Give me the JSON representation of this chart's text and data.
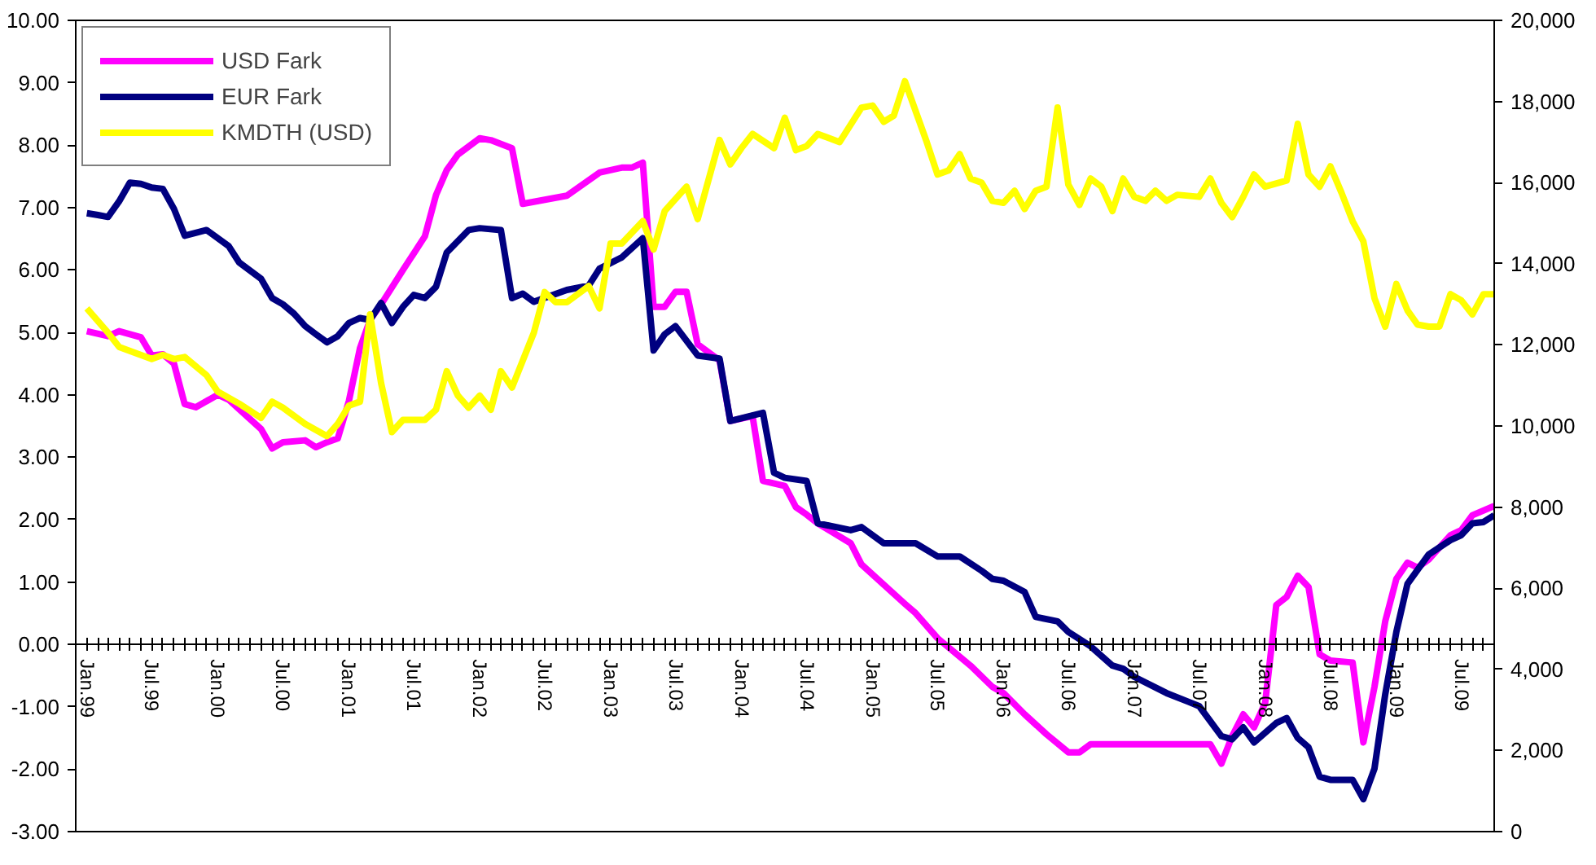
{
  "chart_data": {
    "type": "line",
    "xlim": [
      "1998-12",
      "2009-10"
    ],
    "xticks": [
      {
        "value": "1999-01",
        "label": "Jan.99"
      },
      {
        "value": "1999-07",
        "label": "Jul.99"
      },
      {
        "value": "2000-01",
        "label": "Jan.00"
      },
      {
        "value": "2000-07",
        "label": "Jul.00"
      },
      {
        "value": "2001-01",
        "label": "Jan.01"
      },
      {
        "value": "2001-07",
        "label": "Jul.01"
      },
      {
        "value": "2002-01",
        "label": "Jan.02"
      },
      {
        "value": "2002-07",
        "label": "Jul.02"
      },
      {
        "value": "2003-01",
        "label": "Jan.03"
      },
      {
        "value": "2003-07",
        "label": "Jul.03"
      },
      {
        "value": "2004-01",
        "label": "Jan.04"
      },
      {
        "value": "2004-07",
        "label": "Jul.04"
      },
      {
        "value": "2005-01",
        "label": "Jan.05"
      },
      {
        "value": "2005-07",
        "label": "Jul.05"
      },
      {
        "value": "2006-01",
        "label": "Jan.06"
      },
      {
        "value": "2006-07",
        "label": "Jul.06"
      },
      {
        "value": "2007-01",
        "label": "Jan.07"
      },
      {
        "value": "2007-07",
        "label": "Jul.07"
      },
      {
        "value": "2008-01",
        "label": "Jan.08"
      },
      {
        "value": "2008-07",
        "label": "Jul.08"
      },
      {
        "value": "2009-01",
        "label": "Jan.09"
      },
      {
        "value": "2009-07",
        "label": "Jul.09"
      }
    ],
    "ylim": [
      -3,
      10
    ],
    "yticks": [
      {
        "value": -3,
        "label": "-3.00"
      },
      {
        "value": -2,
        "label": "-2.00"
      },
      {
        "value": -1,
        "label": "-1.00"
      },
      {
        "value": 0,
        "label": "0.00"
      },
      {
        "value": 1,
        "label": "1.00"
      },
      {
        "value": 2,
        "label": "2.00"
      },
      {
        "value": 3,
        "label": "3.00"
      },
      {
        "value": 4,
        "label": "4.00"
      },
      {
        "value": 5,
        "label": "5.00"
      },
      {
        "value": 6,
        "label": "6.00"
      },
      {
        "value": 7,
        "label": "7.00"
      },
      {
        "value": 8,
        "label": "8.00"
      },
      {
        "value": 9,
        "label": "9.00"
      },
      {
        "value": 10,
        "label": "10.00"
      }
    ],
    "y2lim": [
      0,
      20000
    ],
    "y2ticks": [
      0,
      {
        "value": 2000,
        "label": "2,000"
      },
      {
        "value": 4000,
        "label": "4,000"
      },
      {
        "value": 6000,
        "label": "6,000"
      },
      {
        "value": 8000,
        "label": "8,000"
      },
      {
        "value": 10000,
        "label": "10,000"
      },
      {
        "value": 12000,
        "label": "12,000"
      },
      {
        "value": 14000,
        "label": "14,000"
      },
      {
        "value": 16000,
        "label": "16,000"
      },
      {
        "value": 18000,
        "label": "18,000"
      },
      {
        "value": 20000,
        "label": "20,000"
      }
    ],
    "grid": false,
    "legend": "top left",
    "marker": "none",
    "line_style": "solid",
    "series": [
      {
        "name": "USD Fark",
        "color": "#ff00ff",
        "x": [
          "1999-01",
          "1999-03",
          "1999-04",
          "1999-06",
          "1999-07",
          "1999-08",
          "1999-09",
          "1999-10",
          "1999-11",
          "2000-01",
          "2000-02",
          "2000-05",
          "2000-06",
          "2000-07",
          "2000-09",
          "2000-10",
          "2000-11",
          "2000-12",
          "2001-01",
          "2001-02",
          "2001-03",
          "2001-04",
          "2001-06",
          "2001-08",
          "2001-09",
          "2001-10",
          "2001-11",
          "2002-01",
          "2002-02",
          "2002-04",
          "2002-05",
          "2002-09",
          "2002-12",
          "2003-02",
          "2003-03",
          "2003-04",
          "2003-05",
          "2003-06",
          "2003-07",
          "2003-08",
          "2003-09",
          "2003-11",
          "2003-12",
          "2004-02",
          "2004-03",
          "2004-05",
          "2004-06",
          "2004-07",
          "2004-08",
          "2004-11",
          "2004-12",
          "2005-04",
          "2005-05",
          "2005-07",
          "2005-10",
          "2005-12",
          "2006-01",
          "2006-03",
          "2006-05",
          "2006-07",
          "2006-08",
          "2006-09",
          "2007-08",
          "2007-09",
          "2007-10",
          "2007-11",
          "2007-12",
          "2008-01",
          "2008-02",
          "2008-03",
          "2008-04",
          "2008-05",
          "2008-06",
          "2008-07",
          "2008-09",
          "2008-10",
          "2008-11",
          "2008-12",
          "2009-01",
          "2009-02",
          "2009-03",
          "2009-04",
          "2009-06",
          "2009-07",
          "2009-08",
          "2009-10"
        ],
        "values": [
          5.02,
          4.94,
          5.02,
          4.92,
          4.63,
          4.65,
          4.5,
          3.85,
          3.8,
          4.0,
          3.92,
          3.45,
          3.14,
          3.24,
          3.27,
          3.16,
          3.24,
          3.3,
          3.9,
          4.75,
          5.2,
          5.45,
          6.0,
          6.54,
          7.2,
          7.6,
          7.85,
          8.11,
          8.08,
          7.95,
          7.06,
          7.19,
          7.56,
          7.64,
          7.64,
          7.72,
          5.41,
          5.41,
          5.65,
          5.65,
          4.81,
          4.55,
          3.58,
          3.66,
          2.62,
          2.54,
          2.2,
          2.08,
          1.94,
          1.62,
          1.28,
          0.65,
          0.5,
          0.1,
          -0.34,
          -0.68,
          -0.78,
          -1.12,
          -1.44,
          -1.73,
          -1.73,
          -1.6,
          -1.6,
          -1.91,
          -1.47,
          -1.12,
          -1.33,
          -0.94,
          0.63,
          0.76,
          1.1,
          0.92,
          -0.16,
          -0.26,
          -0.29,
          -1.57,
          -0.68,
          0.37,
          1.05,
          1.31,
          1.23,
          1.36,
          1.75,
          1.83,
          2.07,
          2.22
        ]
      },
      {
        "name": "EUR Fark",
        "color": "#000080",
        "x": [
          "1999-01",
          "1999-02",
          "1999-03",
          "1999-04",
          "1999-05",
          "1999-06",
          "1999-07",
          "1999-08",
          "1999-09",
          "1999-10",
          "1999-12",
          "2000-02",
          "2000-03",
          "2000-05",
          "2000-06",
          "2000-07",
          "2000-08",
          "2000-09",
          "2000-10",
          "2000-11",
          "2000-12",
          "2001-01",
          "2001-02",
          "2001-03",
          "2001-04",
          "2001-05",
          "2001-06",
          "2001-07",
          "2001-08",
          "2001-09",
          "2001-10",
          "2001-12",
          "2002-01",
          "2002-03",
          "2002-04",
          "2002-05",
          "2002-06",
          "2002-09",
          "2002-11",
          "2002-12",
          "2003-02",
          "2003-04",
          "2003-05",
          "2003-06",
          "2003-07",
          "2003-09",
          "2003-11",
          "2003-12",
          "2004-03",
          "2004-04",
          "2004-05",
          "2004-07",
          "2004-08",
          "2004-11",
          "2004-12",
          "2005-02",
          "2005-05",
          "2005-07",
          "2005-09",
          "2005-11",
          "2005-12",
          "2006-01",
          "2006-03",
          "2006-04",
          "2006-06",
          "2006-07",
          "2006-09",
          "2006-11",
          "2006-12",
          "2007-01",
          "2007-04",
          "2007-06",
          "2007-07",
          "2007-09",
          "2007-10",
          "2007-11",
          "2007-12",
          "2008-02",
          "2008-03",
          "2008-04",
          "2008-05",
          "2008-06",
          "2008-07",
          "2008-09",
          "2008-10",
          "2008-11",
          "2008-12",
          "2009-01",
          "2009-02",
          "2009-04",
          "2009-06",
          "2009-07",
          "2009-08",
          "2009-09",
          "2009-10"
        ],
        "values": [
          6.91,
          6.88,
          6.85,
          7.1,
          7.4,
          7.38,
          7.32,
          7.3,
          6.98,
          6.55,
          6.64,
          6.38,
          6.12,
          5.86,
          5.55,
          5.45,
          5.3,
          5.1,
          4.97,
          4.84,
          4.94,
          5.15,
          5.23,
          5.2,
          5.47,
          5.15,
          5.41,
          5.6,
          5.55,
          5.73,
          6.28,
          6.64,
          6.67,
          6.64,
          5.55,
          5.62,
          5.49,
          5.68,
          5.75,
          6.02,
          6.2,
          6.51,
          4.71,
          4.97,
          5.1,
          4.63,
          4.58,
          3.58,
          3.71,
          2.75,
          2.67,
          2.62,
          1.94,
          1.83,
          1.88,
          1.62,
          1.62,
          1.41,
          1.41,
          1.18,
          1.05,
          1.02,
          0.84,
          0.44,
          0.37,
          0.2,
          -0.03,
          -0.34,
          -0.39,
          -0.52,
          -0.78,
          -0.92,
          -0.99,
          -1.47,
          -1.52,
          -1.33,
          -1.57,
          -1.26,
          -1.18,
          -1.5,
          -1.65,
          -2.12,
          -2.17,
          -2.17,
          -2.48,
          -1.99,
          -0.8,
          0.2,
          0.97,
          1.44,
          1.67,
          1.75,
          1.94,
          1.96,
          2.07
        ]
      },
      {
        "name": "KMDTH (USD)",
        "color": "#ffff00",
        "axis": "y2",
        "x": [
          "1999-01",
          "1999-03",
          "1999-04",
          "1999-07",
          "1999-08",
          "1999-09",
          "1999-10",
          "1999-12",
          "2000-01",
          "2000-03",
          "2000-05",
          "2000-06",
          "2000-07",
          "2000-09",
          "2000-11",
          "2000-12",
          "2001-01",
          "2001-02",
          "2001-03",
          "2001-04",
          "2001-05",
          "2001-06",
          "2001-08",
          "2001-09",
          "2001-10",
          "2001-11",
          "2001-12",
          "2002-01",
          "2002-02",
          "2002-03",
          "2002-04",
          "2002-06",
          "2002-07",
          "2002-08",
          "2002-09",
          "2002-11",
          "2002-12",
          "2003-01",
          "2003-02",
          "2003-04",
          "2003-05",
          "2003-06",
          "2003-08",
          "2003-09",
          "2003-11",
          "2003-12",
          "2004-01",
          "2004-02",
          "2004-04",
          "2004-05",
          "2004-06",
          "2004-07",
          "2004-08",
          "2004-10",
          "2004-12",
          "2005-01",
          "2005-02",
          "2005-03",
          "2005-04",
          "2005-06",
          "2005-07",
          "2005-08",
          "2005-09",
          "2005-10",
          "2005-11",
          "2005-12",
          "2006-01",
          "2006-02",
          "2006-03",
          "2006-04",
          "2006-05",
          "2006-06",
          "2006-07",
          "2006-08",
          "2006-09",
          "2006-10",
          "2006-11",
          "2006-12",
          "2007-01",
          "2007-02",
          "2007-03",
          "2007-04",
          "2007-05",
          "2007-07",
          "2007-08",
          "2007-09",
          "2007-10",
          "2007-11",
          "2007-12",
          "2008-01",
          "2008-03",
          "2008-04",
          "2008-05",
          "2008-06",
          "2008-07",
          "2008-08",
          "2008-09",
          "2008-10",
          "2008-11",
          "2008-12",
          "2009-01",
          "2009-02",
          "2009-03",
          "2009-04",
          "2009-05",
          "2009-06",
          "2009-07",
          "2009-08",
          "2009-09",
          "2009-10"
        ],
        "values": [
          12900,
          12300,
          11950,
          11650,
          11750,
          11650,
          11700,
          11250,
          10850,
          10550,
          10200,
          10600,
          10450,
          10050,
          9750,
          10050,
          10500,
          10600,
          12750,
          11050,
          9850,
          10150,
          10150,
          10400,
          11350,
          10750,
          10450,
          10750,
          10400,
          11350,
          10950,
          12300,
          13300,
          13050,
          13050,
          13450,
          12900,
          14500,
          14500,
          15050,
          14350,
          15300,
          15900,
          15100,
          17050,
          16450,
          16850,
          17200,
          16850,
          17600,
          16800,
          16900,
          17200,
          17000,
          17850,
          17900,
          17500,
          17650,
          18500,
          17000,
          16200,
          16300,
          16700,
          16100,
          16000,
          15550,
          15500,
          15800,
          15350,
          15800,
          15900,
          17850,
          15950,
          15450,
          16100,
          15900,
          15300,
          16100,
          15650,
          15550,
          15800,
          15550,
          15700,
          15650,
          16100,
          15500,
          15150,
          15650,
          16200,
          15900,
          16050,
          17450,
          16200,
          15900,
          16400,
          15750,
          15050,
          14550,
          13150,
          12450,
          13500,
          12850,
          12500,
          12450,
          12450,
          13250,
          13100,
          12750,
          13250,
          13250
        ]
      }
    ]
  }
}
